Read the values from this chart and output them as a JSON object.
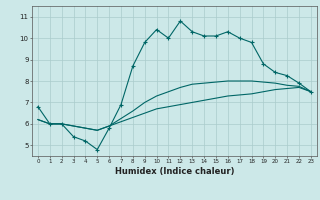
{
  "title": "",
  "xlabel": "Humidex (Indice chaleur)",
  "bg_color": "#cce8e8",
  "grid_color": "#aacccc",
  "line_color": "#006666",
  "xlim": [
    -0.5,
    23.5
  ],
  "ylim": [
    4.5,
    11.5
  ],
  "xticks": [
    0,
    1,
    2,
    3,
    4,
    5,
    6,
    7,
    8,
    9,
    10,
    11,
    12,
    13,
    14,
    15,
    16,
    17,
    18,
    19,
    20,
    21,
    22,
    23
  ],
  "yticks": [
    5,
    6,
    7,
    8,
    9,
    10,
    11
  ],
  "line1_x": [
    0,
    1,
    2,
    3,
    4,
    5,
    6,
    7,
    8,
    9,
    10,
    11,
    12,
    13,
    14,
    15,
    16,
    17,
    18,
    19,
    20,
    21,
    22,
    23
  ],
  "line1_y": [
    6.8,
    6.0,
    6.0,
    5.4,
    5.2,
    4.8,
    5.8,
    6.9,
    8.7,
    9.8,
    10.4,
    10.0,
    10.8,
    10.3,
    10.1,
    10.1,
    10.3,
    10.0,
    9.8,
    8.8,
    8.4,
    8.25,
    7.9,
    7.5
  ],
  "line2_x": [
    0,
    1,
    2,
    3,
    4,
    5,
    6,
    7,
    8,
    9,
    10,
    11,
    12,
    13,
    14,
    15,
    16,
    17,
    18,
    19,
    20,
    21,
    22,
    23
  ],
  "line2_y": [
    6.2,
    6.0,
    6.0,
    5.9,
    5.8,
    5.7,
    5.9,
    6.1,
    6.3,
    6.5,
    6.7,
    6.8,
    6.9,
    7.0,
    7.1,
    7.2,
    7.3,
    7.35,
    7.4,
    7.5,
    7.6,
    7.65,
    7.7,
    7.5
  ],
  "line3_x": [
    0,
    1,
    2,
    3,
    4,
    5,
    6,
    7,
    8,
    9,
    10,
    11,
    12,
    13,
    14,
    15,
    16,
    17,
    18,
    19,
    20,
    21,
    22,
    23
  ],
  "line3_y": [
    6.2,
    6.0,
    6.0,
    5.9,
    5.8,
    5.7,
    5.9,
    6.25,
    6.6,
    7.0,
    7.3,
    7.5,
    7.7,
    7.85,
    7.9,
    7.95,
    8.0,
    8.0,
    8.0,
    7.95,
    7.9,
    7.8,
    7.75,
    7.5
  ]
}
